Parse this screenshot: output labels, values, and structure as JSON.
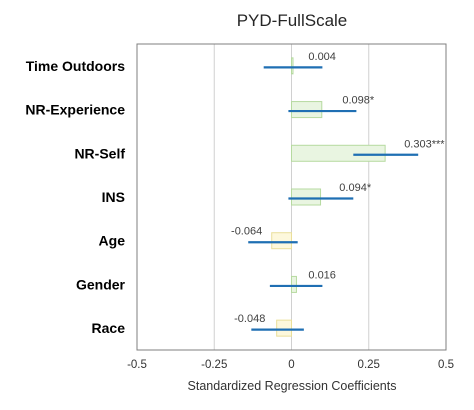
{
  "chart_data": {
    "type": "bar",
    "orientation": "horizontal",
    "title": "PYD-FullScale",
    "xlabel": "Standardized Regression Coefficients",
    "ylabel": "",
    "xlim": [
      -0.5,
      0.5
    ],
    "xticks": [
      -0.5,
      -0.25,
      0,
      0.25,
      0.5
    ],
    "xtick_labels": [
      "-0.5",
      "-0.25",
      "0",
      "0.25",
      "0.5"
    ],
    "grid": "vertical",
    "categories": [
      "Time Outdoors",
      "NR-Experience",
      "NR-Self",
      "INS",
      "Age",
      "Gender",
      "Race"
    ],
    "values": [
      0.004,
      0.098,
      0.303,
      0.094,
      -0.064,
      0.016,
      -0.048
    ],
    "value_labels": [
      "0.004",
      "0.098*",
      "0.303***",
      "0.094*",
      "-0.064",
      "0.016",
      "-0.048"
    ],
    "ci_low": [
      -0.09,
      -0.01,
      0.2,
      -0.01,
      -0.14,
      -0.07,
      -0.13
    ],
    "ci_high": [
      0.1,
      0.21,
      0.41,
      0.2,
      0.02,
      0.1,
      0.04
    ],
    "colors": {
      "positive_fill": "#e9f5e1",
      "positive_stroke": "#b6daa0",
      "negative_fill": "#fdf8dc",
      "negative_stroke": "#eadf9a",
      "ci_line": "#1f6fb3",
      "grid": "#d0d0d0",
      "frame": "#7f7f7f"
    }
  }
}
